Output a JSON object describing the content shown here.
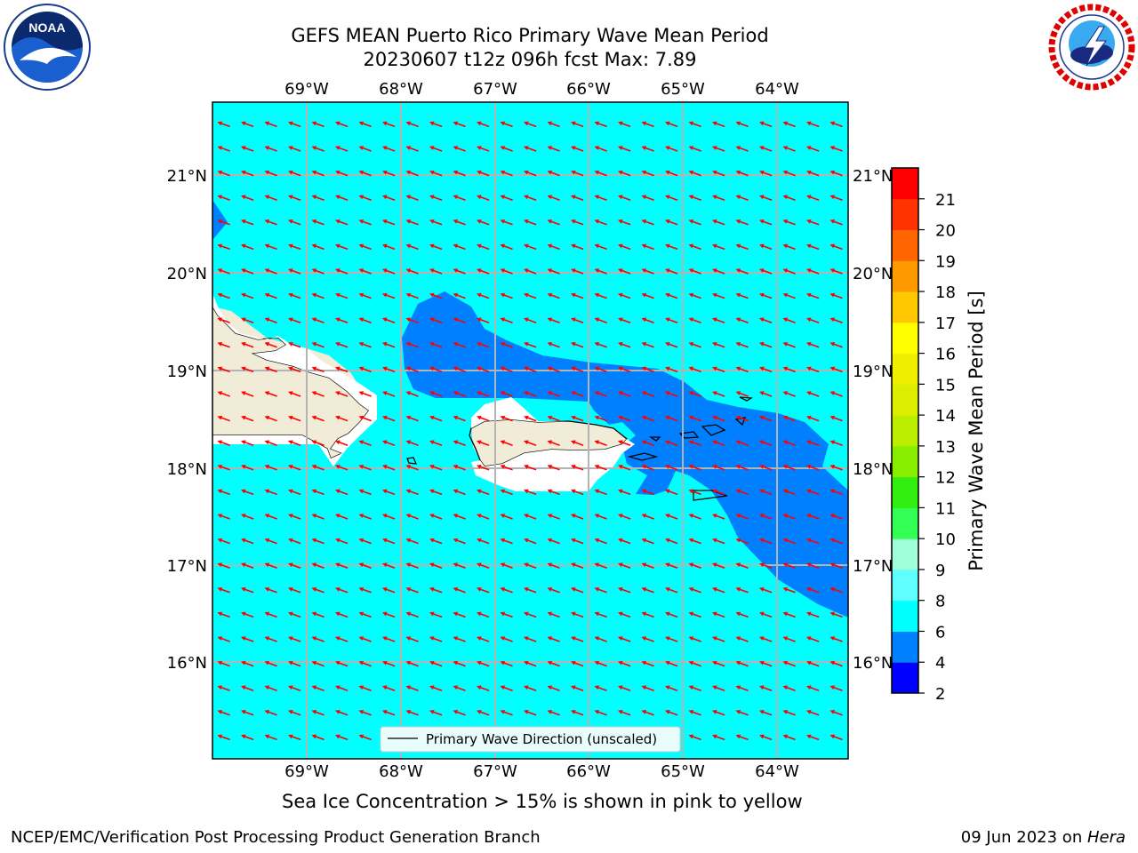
{
  "title": {
    "line1": "GEFS MEAN Puerto Rico Primary Wave Mean Period",
    "line2": "20230607 t12z 096h fcst   Max: 7.89"
  },
  "logos": {
    "left": "NOAA",
    "right": "NATIONAL WEATHER SERVICE"
  },
  "map": {
    "lon_labels": [
      "69°W",
      "68°W",
      "67°W",
      "66°W",
      "65°W",
      "64°W"
    ],
    "lat_labels": [
      "21°N",
      "20°N",
      "19°N",
      "18°N",
      "17°N",
      "16°N"
    ],
    "legend_label": "Primary Wave Direction (unscaled)",
    "colors": {
      "ocean_6_8": "#00ffff",
      "ocean_4_6": "#0080ff",
      "land": "#f0ecd8",
      "arrow": "#ff0000",
      "grid": "#b4b4b4"
    }
  },
  "colorbar": {
    "label": "Primary Wave Mean Period [s]",
    "ticks": [
      "2",
      "4",
      "6",
      "8",
      "9",
      "10",
      "11",
      "12",
      "13",
      "14",
      "15",
      "16",
      "17",
      "18",
      "19",
      "20",
      "21"
    ],
    "colors": [
      "#0000ff",
      "#0080ff",
      "#00ffff",
      "#5fffff",
      "#9fffd8",
      "#33ff55",
      "#33ee11",
      "#88ee00",
      "#bbee00",
      "#ddee00",
      "#eeee00",
      "#ffff00",
      "#ffc800",
      "#ff9900",
      "#ff6600",
      "#ff3300",
      "#ff0000"
    ]
  },
  "notes": {
    "ice": "Sea Ice Concentration > 15% is shown in pink to yellow"
  },
  "footer": {
    "left": "NCEP/EMC/Verification Post Processing Product Generation Branch",
    "right_prefix": "09 Jun 2023 on ",
    "right_machine": "Hera"
  }
}
